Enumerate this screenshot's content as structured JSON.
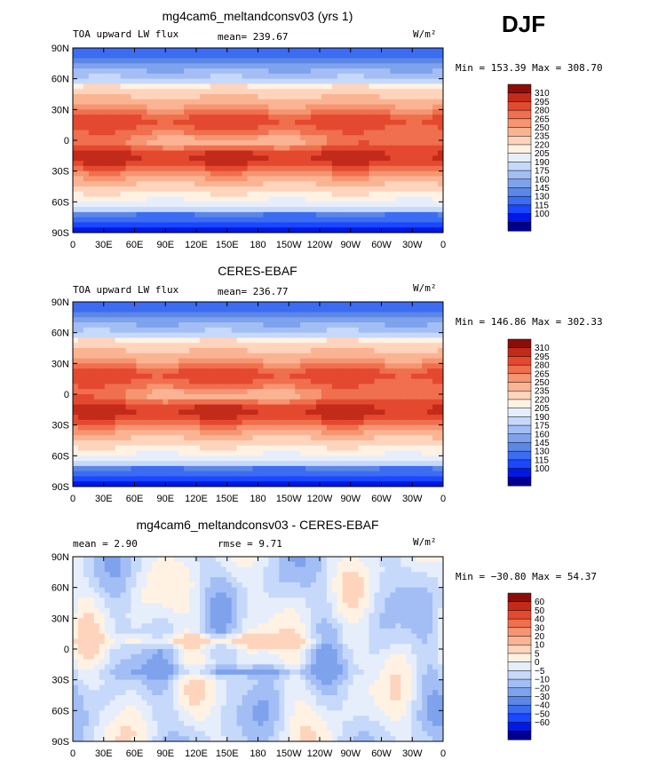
{
  "season": "DJF",
  "colors": {
    "abs": [
      "#00008f",
      "#0018e6",
      "#1a47ff",
      "#3c6cf2",
      "#5c87e6",
      "#7fa2ec",
      "#a3bef5",
      "#c6d9fa",
      "#e6eefc",
      "#fff2e3",
      "#fed4bd",
      "#fbb493",
      "#f69571",
      "#ef6f4e",
      "#e4492f",
      "#c22a1a",
      "#8c0d08"
    ],
    "diff": [
      "#00008f",
      "#0018e6",
      "#1a47ff",
      "#3c6cf2",
      "#5c87e6",
      "#7fa2ec",
      "#a3bef5",
      "#c6d9fa",
      "#e6eefc",
      "#fff2e3",
      "#fed4bd",
      "#fbb493",
      "#f69571",
      "#ef6f4e",
      "#e4492f",
      "#c22a1a",
      "#8c0d08"
    ]
  },
  "chart_data": [
    {
      "type": "heatmap",
      "title": "mg4cam6_meltandconsv03 (yrs 1)",
      "left_label": "TOA upward LW flux",
      "stat_label": "mean= 239.67",
      "units": "W/m²",
      "minmax": "Min = 153.39 Max = 308.70",
      "x_ticks": [
        "0",
        "30E",
        "60E",
        "90E",
        "120E",
        "150E",
        "180",
        "150W",
        "120W",
        "90W",
        "60W",
        "30W",
        "0"
      ],
      "y_ticks": [
        "90N",
        "60N",
        "30N",
        "0",
        "30S",
        "60S",
        "90S"
      ],
      "colorbar_levels": [
        "310",
        "295",
        "280",
        "265",
        "250",
        "235",
        "220",
        "205",
        "190",
        "175",
        "160",
        "145",
        "130",
        "115",
        "100"
      ],
      "mean": 239.67,
      "min": 153.39,
      "max": 308.7
    },
    {
      "type": "heatmap",
      "title": "CERES-EBAF",
      "left_label": "TOA upward LW flux",
      "stat_label": "mean= 236.77",
      "units": "W/m²",
      "minmax": "Min = 146.86 Max = 302.33",
      "x_ticks": [
        "0",
        "30E",
        "60E",
        "90E",
        "120E",
        "150E",
        "180",
        "150W",
        "120W",
        "90W",
        "60W",
        "30W",
        "0"
      ],
      "y_ticks": [
        "90N",
        "60N",
        "30N",
        "0",
        "30S",
        "60S",
        "90S"
      ],
      "colorbar_levels": [
        "310",
        "295",
        "280",
        "265",
        "250",
        "235",
        "220",
        "205",
        "190",
        "175",
        "160",
        "145",
        "130",
        "115",
        "100"
      ],
      "mean": 236.77,
      "min": 146.86,
      "max": 302.33
    },
    {
      "type": "heatmap",
      "title": "mg4cam6_meltandconsv03 - CERES-EBAF",
      "left_label": "mean =    2.90",
      "stat_label": "rmse =    9.71",
      "units": "W/m²",
      "minmax": "Min = −30.80 Max =  54.37",
      "x_ticks": [
        "0",
        "30E",
        "60E",
        "90E",
        "120E",
        "150E",
        "180",
        "150W",
        "120W",
        "90W",
        "60W",
        "30W",
        "0"
      ],
      "y_ticks": [
        "90N",
        "60N",
        "30N",
        "0",
        "30S",
        "60S",
        "90S"
      ],
      "colorbar_levels": [
        "60",
        "50",
        "40",
        "30",
        "20",
        "10",
        "5",
        "0",
        "−5",
        "−10",
        "−20",
        "−30",
        "−40",
        "−50",
        "−60"
      ],
      "mean": 2.9,
      "rmse": 9.71,
      "min": -30.8,
      "max": 54.37
    }
  ]
}
